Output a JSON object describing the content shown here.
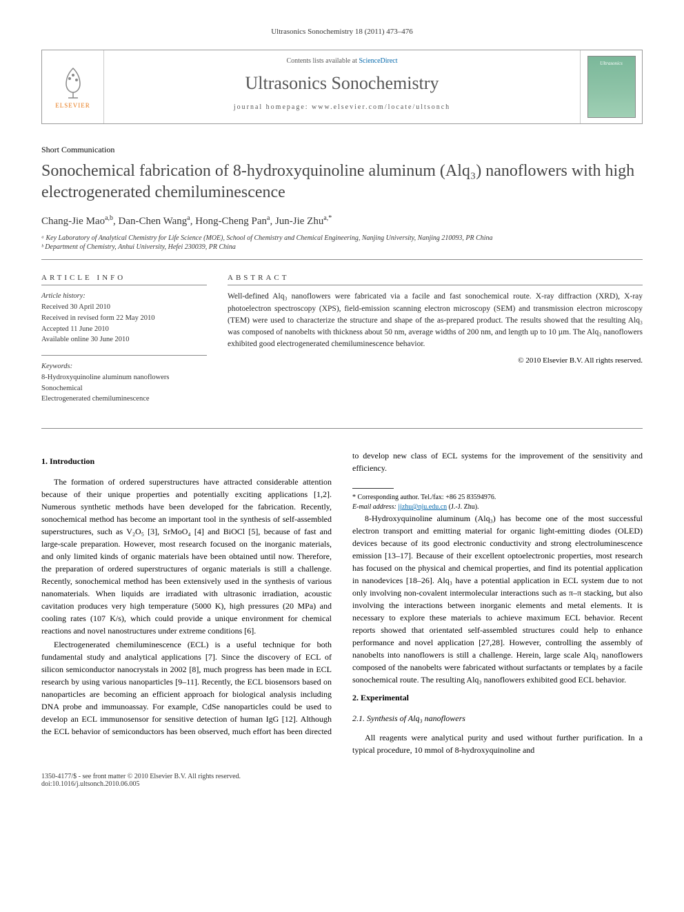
{
  "running_head": "Ultrasonics Sonochemistry 18 (2011) 473–476",
  "header": {
    "contents_prefix": "Contents lists available at ",
    "contents_link": "ScienceDirect",
    "journal": "Ultrasonics Sonochemistry",
    "homepage_label": "journal homepage: ",
    "homepage_url": "www.elsevier.com/locate/ultsonch",
    "publisher": "ELSEVIER",
    "cover_title": "Ultrasonics"
  },
  "article_type": "Short Communication",
  "title": "Sonochemical fabrication of 8-hydroxyquinoline aluminum (Alq₃) nanoflowers with high electrogenerated chemiluminescence",
  "authors_html": "Chang-Jie Mao",
  "authors": [
    {
      "name": "Chang-Jie Mao",
      "aff": "a,b"
    },
    {
      "name": "Dan-Chen Wang",
      "aff": "a"
    },
    {
      "name": "Hong-Cheng Pan",
      "aff": "a"
    },
    {
      "name": "Jun-Jie Zhu",
      "aff": "a,*"
    }
  ],
  "affiliations": [
    "ᵃ Key Laboratory of Analytical Chemistry for Life Science (MOE), School of Chemistry and Chemical Engineering, Nanjing University, Nanjing 210093, PR China",
    "ᵇ Department of Chemistry, Anhui University, Hefei 230039, PR China"
  ],
  "article_info": {
    "heading": "ARTICLE INFO",
    "history_label": "Article history:",
    "history": [
      "Received 30 April 2010",
      "Received in revised form 22 May 2010",
      "Accepted 11 June 2010",
      "Available online 30 June 2010"
    ],
    "keywords_label": "Keywords:",
    "keywords": [
      "8-Hydroxyquinoline aluminum nanoflowers",
      "Sonochemical",
      "Electrogenerated chemiluminescence"
    ]
  },
  "abstract": {
    "heading": "ABSTRACT",
    "text": "Well-defined Alq₃ nanoflowers were fabricated via a facile and fast sonochemical route. X-ray diffraction (XRD), X-ray photoelectron spectroscopy (XPS), field-emission scanning electron microscopy (SEM) and transmission electron microscopy (TEM) were used to characterize the structure and shape of the as-prepared product. The results showed that the resulting Alq₃ was composed of nanobelts with thickness about 50 nm, average widths of 200 nm, and length up to 10 µm. The Alq₃ nanoflowers exhibited good electrogenerated chemiluminescence behavior.",
    "copyright": "© 2010 Elsevier B.V. All rights reserved."
  },
  "sections": {
    "s1_heading": "1. Introduction",
    "s1_p1": "The formation of ordered superstructures have attracted considerable attention because of their unique properties and potentially exciting applications [1,2]. Numerous synthetic methods have been developed for the fabrication. Recently, sonochemical method has become an important tool in the synthesis of self-assembled superstructures, such as V₂O₅ [3], SrMoO₄ [4] and BiOCl [5], because of fast and large-scale preparation. However, most research focused on the inorganic materials, and only limited kinds of organic materials have been obtained until now. Therefore, the preparation of ordered superstructures of organic materials is still a challenge. Recently, sonochemical method has been extensively used in the synthesis of various nanomaterials. When liquids are irradiated with ultrasonic irradiation, acoustic cavitation produces very high temperature (5000 K), high pressures (20 MPa) and cooling rates (107 K/s), which could provide a unique environment for chemical reactions and novel nanostructures under extreme conditions [6].",
    "s1_p2": "Electrogenerated chemiluminescence (ECL) is a useful technique for both fundamental study and analytical applications [7]. Since the discovery of ECL of silicon semiconductor nanocrystals in 2002 [8], much progress has been made in ECL research by using various nanoparticles [9–11]. Recently, the ECL biosensors based on nanoparticles are becoming an efficient approach for biological analysis including DNA probe and immunoassay. For example, CdSe nanoparticles could be used to develop an ECL immunosensor for sensitive detection of human IgG [12]. Although the ECL behavior of semiconductors has been observed, much effort has been directed to develop new class of ECL systems for the improvement of the sensitivity and efficiency.",
    "s1_p3": "8-Hydroxyquinoline aluminum (Alq₃) has become one of the most successful electron transport and emitting material for organic light-emitting diodes (OLED) devices because of its good electronic conductivity and strong electroluminescence emission [13–17]. Because of their excellent optoelectronic properties, most research has focused on the physical and chemical properties, and find its potential application in nanodevices [18–26]. Alq₃ have a potential application in ECL system due to not only involving non-covalent intermolecular interactions such as π–π stacking, but also involving the interactions between inorganic elements and metal elements. It is necessary to explore these materials to achieve maximum ECL behavior. Recent reports showed that orientated self-assembled structures could help to enhance performance and novel application [27,28]. However, controlling the assembly of nanobelts into nanoflowers is still a challenge. Herein, large scale Alq₃ nanoflowers composed of the nanobelts were fabricated without surfactants or templates by a facile sonochemical route. The resulting Alq₃ nanoflowers exhibited good ECL behavior.",
    "s2_heading": "2. Experimental",
    "s2_1_heading": "2.1. Synthesis of Alq₃ nanoflowers",
    "s2_1_p1": "All reagents were analytical purity and used without further purification. In a typical procedure, 10 mmol of 8-hydroxyquinoline and"
  },
  "footnote": {
    "corr": "* Corresponding author. Tel./fax: +86 25 83594976.",
    "email_label": "E-mail address:",
    "email": "jjzhu@nju.edu.cn",
    "email_who": "(J.-J. Zhu)."
  },
  "footer": {
    "line1": "1350-4177/$ - see front matter © 2010 Elsevier B.V. All rights reserved.",
    "line2": "doi:10.1016/j.ultsonch.2010.06.005"
  },
  "style": {
    "link_color": "#0066aa",
    "elsevier_orange": "#e77817",
    "cover_bg": "#7bb89a"
  }
}
